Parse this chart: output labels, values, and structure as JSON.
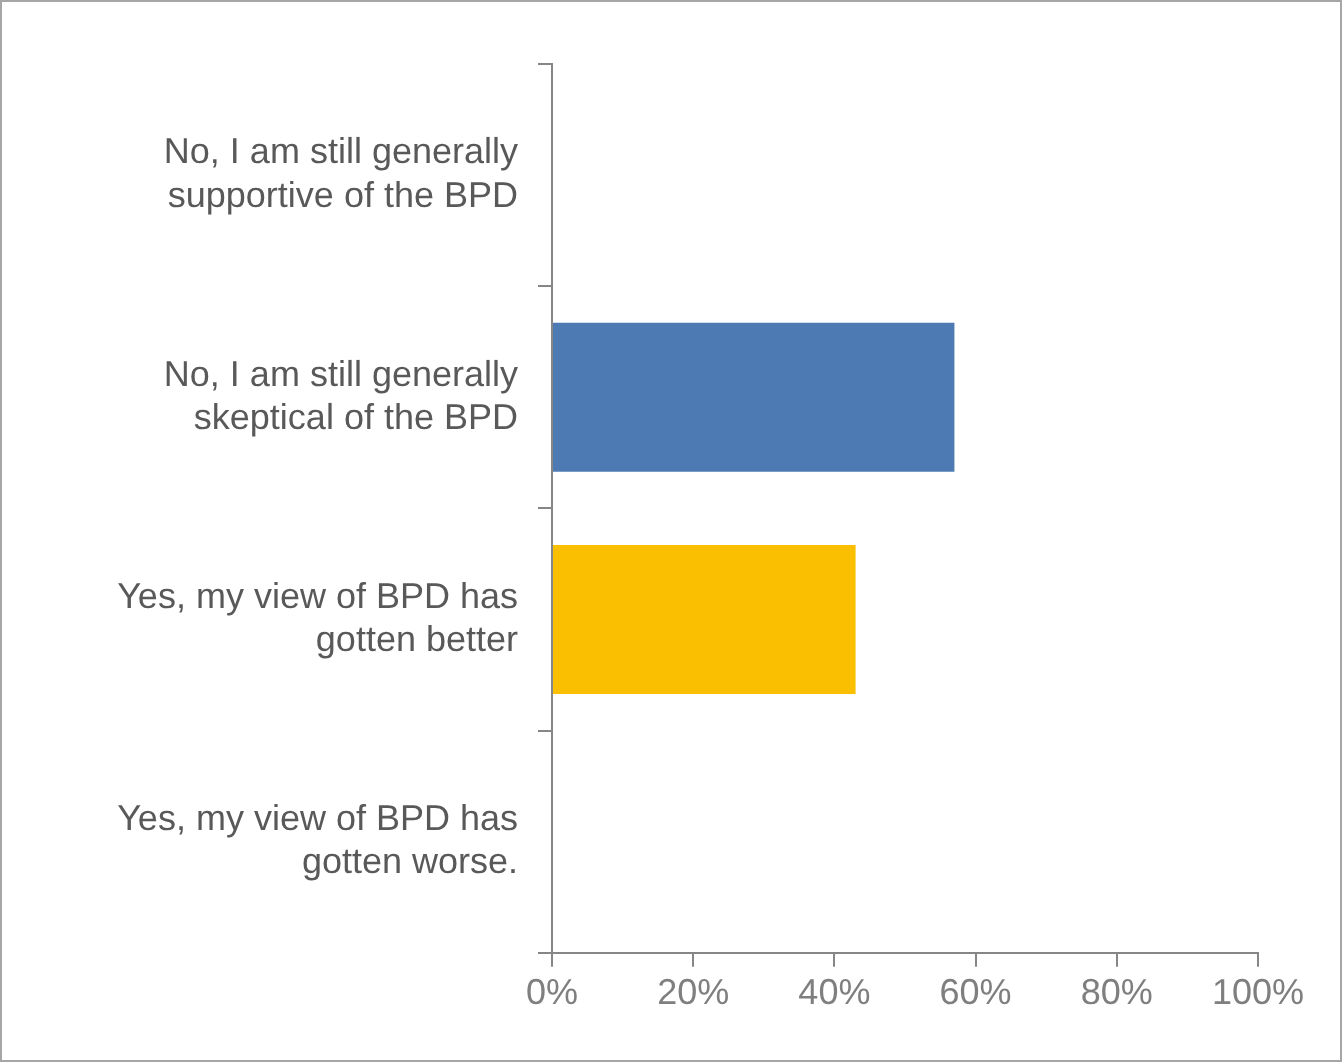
{
  "chart_data": {
    "type": "bar",
    "orientation": "horizontal",
    "categories": [
      "No, I am still generally supportive of the BPD",
      "No, I am still generally skeptical of the BPD",
      "Yes, my view of BPD has gotten better",
      "Yes, my view of BPD has gotten worse."
    ],
    "values": [
      0,
      57,
      43,
      0
    ],
    "colors": [
      "#4e7ab3",
      "#4e7ab3",
      "#f9bf00",
      "#f9bf00"
    ],
    "xlim": [
      0,
      100
    ],
    "xticks": [
      {
        "value": 0,
        "label": "0%"
      },
      {
        "value": 20,
        "label": "20%"
      },
      {
        "value": 40,
        "label": "40%"
      },
      {
        "value": 60,
        "label": "60%"
      },
      {
        "value": 80,
        "label": "80%"
      },
      {
        "value": 100,
        "label": "100%"
      }
    ],
    "grid": false,
    "legend": false
  }
}
